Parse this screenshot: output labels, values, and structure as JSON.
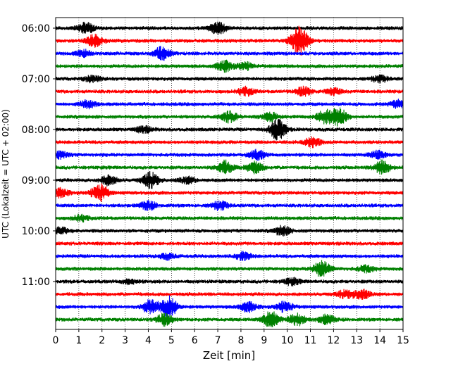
{
  "chart_data": {
    "type": "line",
    "xlabel": "Zeit  [min]",
    "ylabel": "UTC (Lokalzeit = UTC + 02:00)",
    "xlim": [
      0,
      15
    ],
    "x_ticks": [
      "0",
      "1",
      "2",
      "3",
      "4",
      "5",
      "6",
      "7",
      "8",
      "9",
      "10",
      "11",
      "12",
      "13",
      "14",
      "15"
    ],
    "grid": "vertical dotted",
    "trace_interval_minutes": 15,
    "start_time": "06:00",
    "y_ticks": [
      "06:00",
      "07:00",
      "08:00",
      "09:00",
      "10:00",
      "11:00"
    ],
    "colors": [
      "#000000",
      "#ff0000",
      "#0000ff",
      "#008000"
    ],
    "series": [
      {
        "label": "06:00",
        "color": "#000000",
        "events": [
          [
            1.3,
            1.0
          ],
          [
            7.0,
            1.2
          ]
        ]
      },
      {
        "label": "06:15",
        "color": "#ff0000",
        "events": [
          [
            1.7,
            1.2
          ],
          [
            10.6,
            2.0
          ],
          [
            10.4,
            1.0
          ]
        ]
      },
      {
        "label": "06:30",
        "color": "#0000ff",
        "events": [
          [
            4.6,
            1.3
          ],
          [
            1.2,
            0.6
          ]
        ]
      },
      {
        "label": "06:45",
        "color": "#008000",
        "events": [
          [
            7.3,
            1.0
          ],
          [
            8.2,
            0.7
          ]
        ]
      },
      {
        "label": "07:00",
        "color": "#000000",
        "events": [
          [
            1.6,
            0.6
          ],
          [
            14.0,
            0.6
          ]
        ]
      },
      {
        "label": "07:15",
        "color": "#ff0000",
        "events": [
          [
            8.2,
            0.8
          ],
          [
            10.7,
            0.8
          ],
          [
            12.0,
            0.6
          ]
        ]
      },
      {
        "label": "07:30",
        "color": "#0000ff",
        "events": [
          [
            1.4,
            0.7
          ],
          [
            14.8,
            0.7
          ]
        ]
      },
      {
        "label": "07:45",
        "color": "#008000",
        "events": [
          [
            7.5,
            1.0
          ],
          [
            9.3,
            0.8
          ],
          [
            12.2,
            1.8
          ],
          [
            11.6,
            1.2
          ]
        ]
      },
      {
        "label": "08:00",
        "color": "#000000",
        "events": [
          [
            9.6,
            2.1
          ],
          [
            3.8,
            0.6
          ]
        ]
      },
      {
        "label": "08:15",
        "color": "#ff0000",
        "events": [
          [
            11.1,
            0.9
          ]
        ]
      },
      {
        "label": "08:30",
        "color": "#0000ff",
        "events": [
          [
            8.7,
            0.9
          ],
          [
            0.2,
            0.7
          ],
          [
            13.9,
            0.7
          ]
        ]
      },
      {
        "label": "08:45",
        "color": "#008000",
        "events": [
          [
            7.3,
            1.3
          ],
          [
            8.6,
            1.1
          ],
          [
            14.1,
            1.3
          ]
        ]
      },
      {
        "label": "09:00",
        "color": "#000000",
        "events": [
          [
            2.3,
            0.9
          ],
          [
            4.1,
            1.5
          ],
          [
            5.7,
            0.6
          ]
        ]
      },
      {
        "label": "09:15",
        "color": "#ff0000",
        "events": [
          [
            1.9,
            1.7
          ],
          [
            0.2,
            0.8
          ]
        ]
      },
      {
        "label": "09:30",
        "color": "#0000ff",
        "events": [
          [
            4.0,
            0.8
          ],
          [
            7.1,
            0.8
          ]
        ]
      },
      {
        "label": "09:45",
        "color": "#008000",
        "events": [
          [
            1.1,
            0.6
          ]
        ]
      },
      {
        "label": "10:00",
        "color": "#000000",
        "events": [
          [
            9.8,
            0.9
          ],
          [
            0.2,
            0.6
          ]
        ]
      },
      {
        "label": "10:15",
        "color": "#ff0000",
        "events": []
      },
      {
        "label": "10:30",
        "color": "#0000ff",
        "events": [
          [
            8.1,
            0.7
          ],
          [
            4.8,
            0.5
          ]
        ]
      },
      {
        "label": "10:45",
        "color": "#008000",
        "events": [
          [
            11.5,
            1.6
          ],
          [
            13.4,
            0.6
          ]
        ]
      },
      {
        "label": "11:00",
        "color": "#000000",
        "events": [
          [
            10.2,
            0.6
          ],
          [
            3.2,
            0.4
          ]
        ]
      },
      {
        "label": "11:15",
        "color": "#ff0000",
        "events": [
          [
            13.2,
            0.9
          ],
          [
            12.5,
            0.7
          ]
        ]
      },
      {
        "label": "11:30",
        "color": "#0000ff",
        "events": [
          [
            4.1,
            1.3
          ],
          [
            4.9,
            2.0
          ],
          [
            9.9,
            1.0
          ],
          [
            8.3,
            0.9
          ]
        ]
      },
      {
        "label": "11:45",
        "color": "#008000",
        "events": [
          [
            4.7,
            1.1
          ],
          [
            9.3,
            1.6
          ],
          [
            10.4,
            1.2
          ],
          [
            11.7,
            0.9
          ]
        ]
      }
    ]
  }
}
